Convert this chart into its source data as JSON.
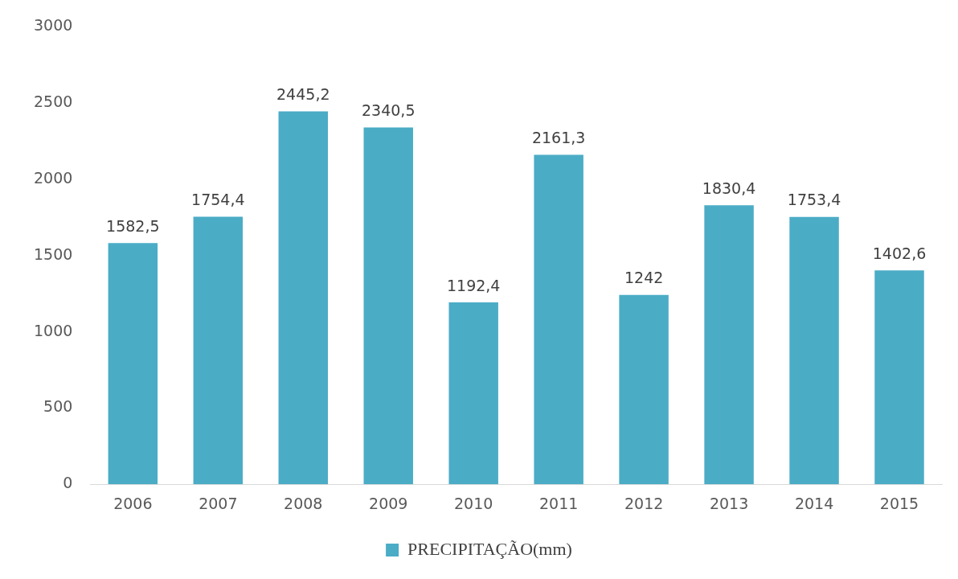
{
  "chart_data": {
    "type": "bar",
    "categories": [
      "2006",
      "2007",
      "2008",
      "2009",
      "2010",
      "2011",
      "2012",
      "2013",
      "2014",
      "2015"
    ],
    "series": [
      {
        "name": "PRECIPITAÇÃO(mm)",
        "color": "#4bacc6",
        "values": [
          1582.5,
          1754.4,
          2445.2,
          2340.5,
          1192.4,
          2161.3,
          1242,
          1830.4,
          1753.4,
          1402.6
        ],
        "value_labels": [
          "1582,5",
          "1754,4",
          "2445,2",
          "2340,5",
          "1192,4",
          "2161,3",
          "1242",
          "1830,4",
          "1753,4",
          "1402,6"
        ]
      }
    ],
    "ylim": [
      0,
      3000
    ],
    "yticks": [
      0,
      500,
      1000,
      1500,
      2000,
      2500,
      3000
    ],
    "grid": false,
    "legend": "bottom"
  }
}
